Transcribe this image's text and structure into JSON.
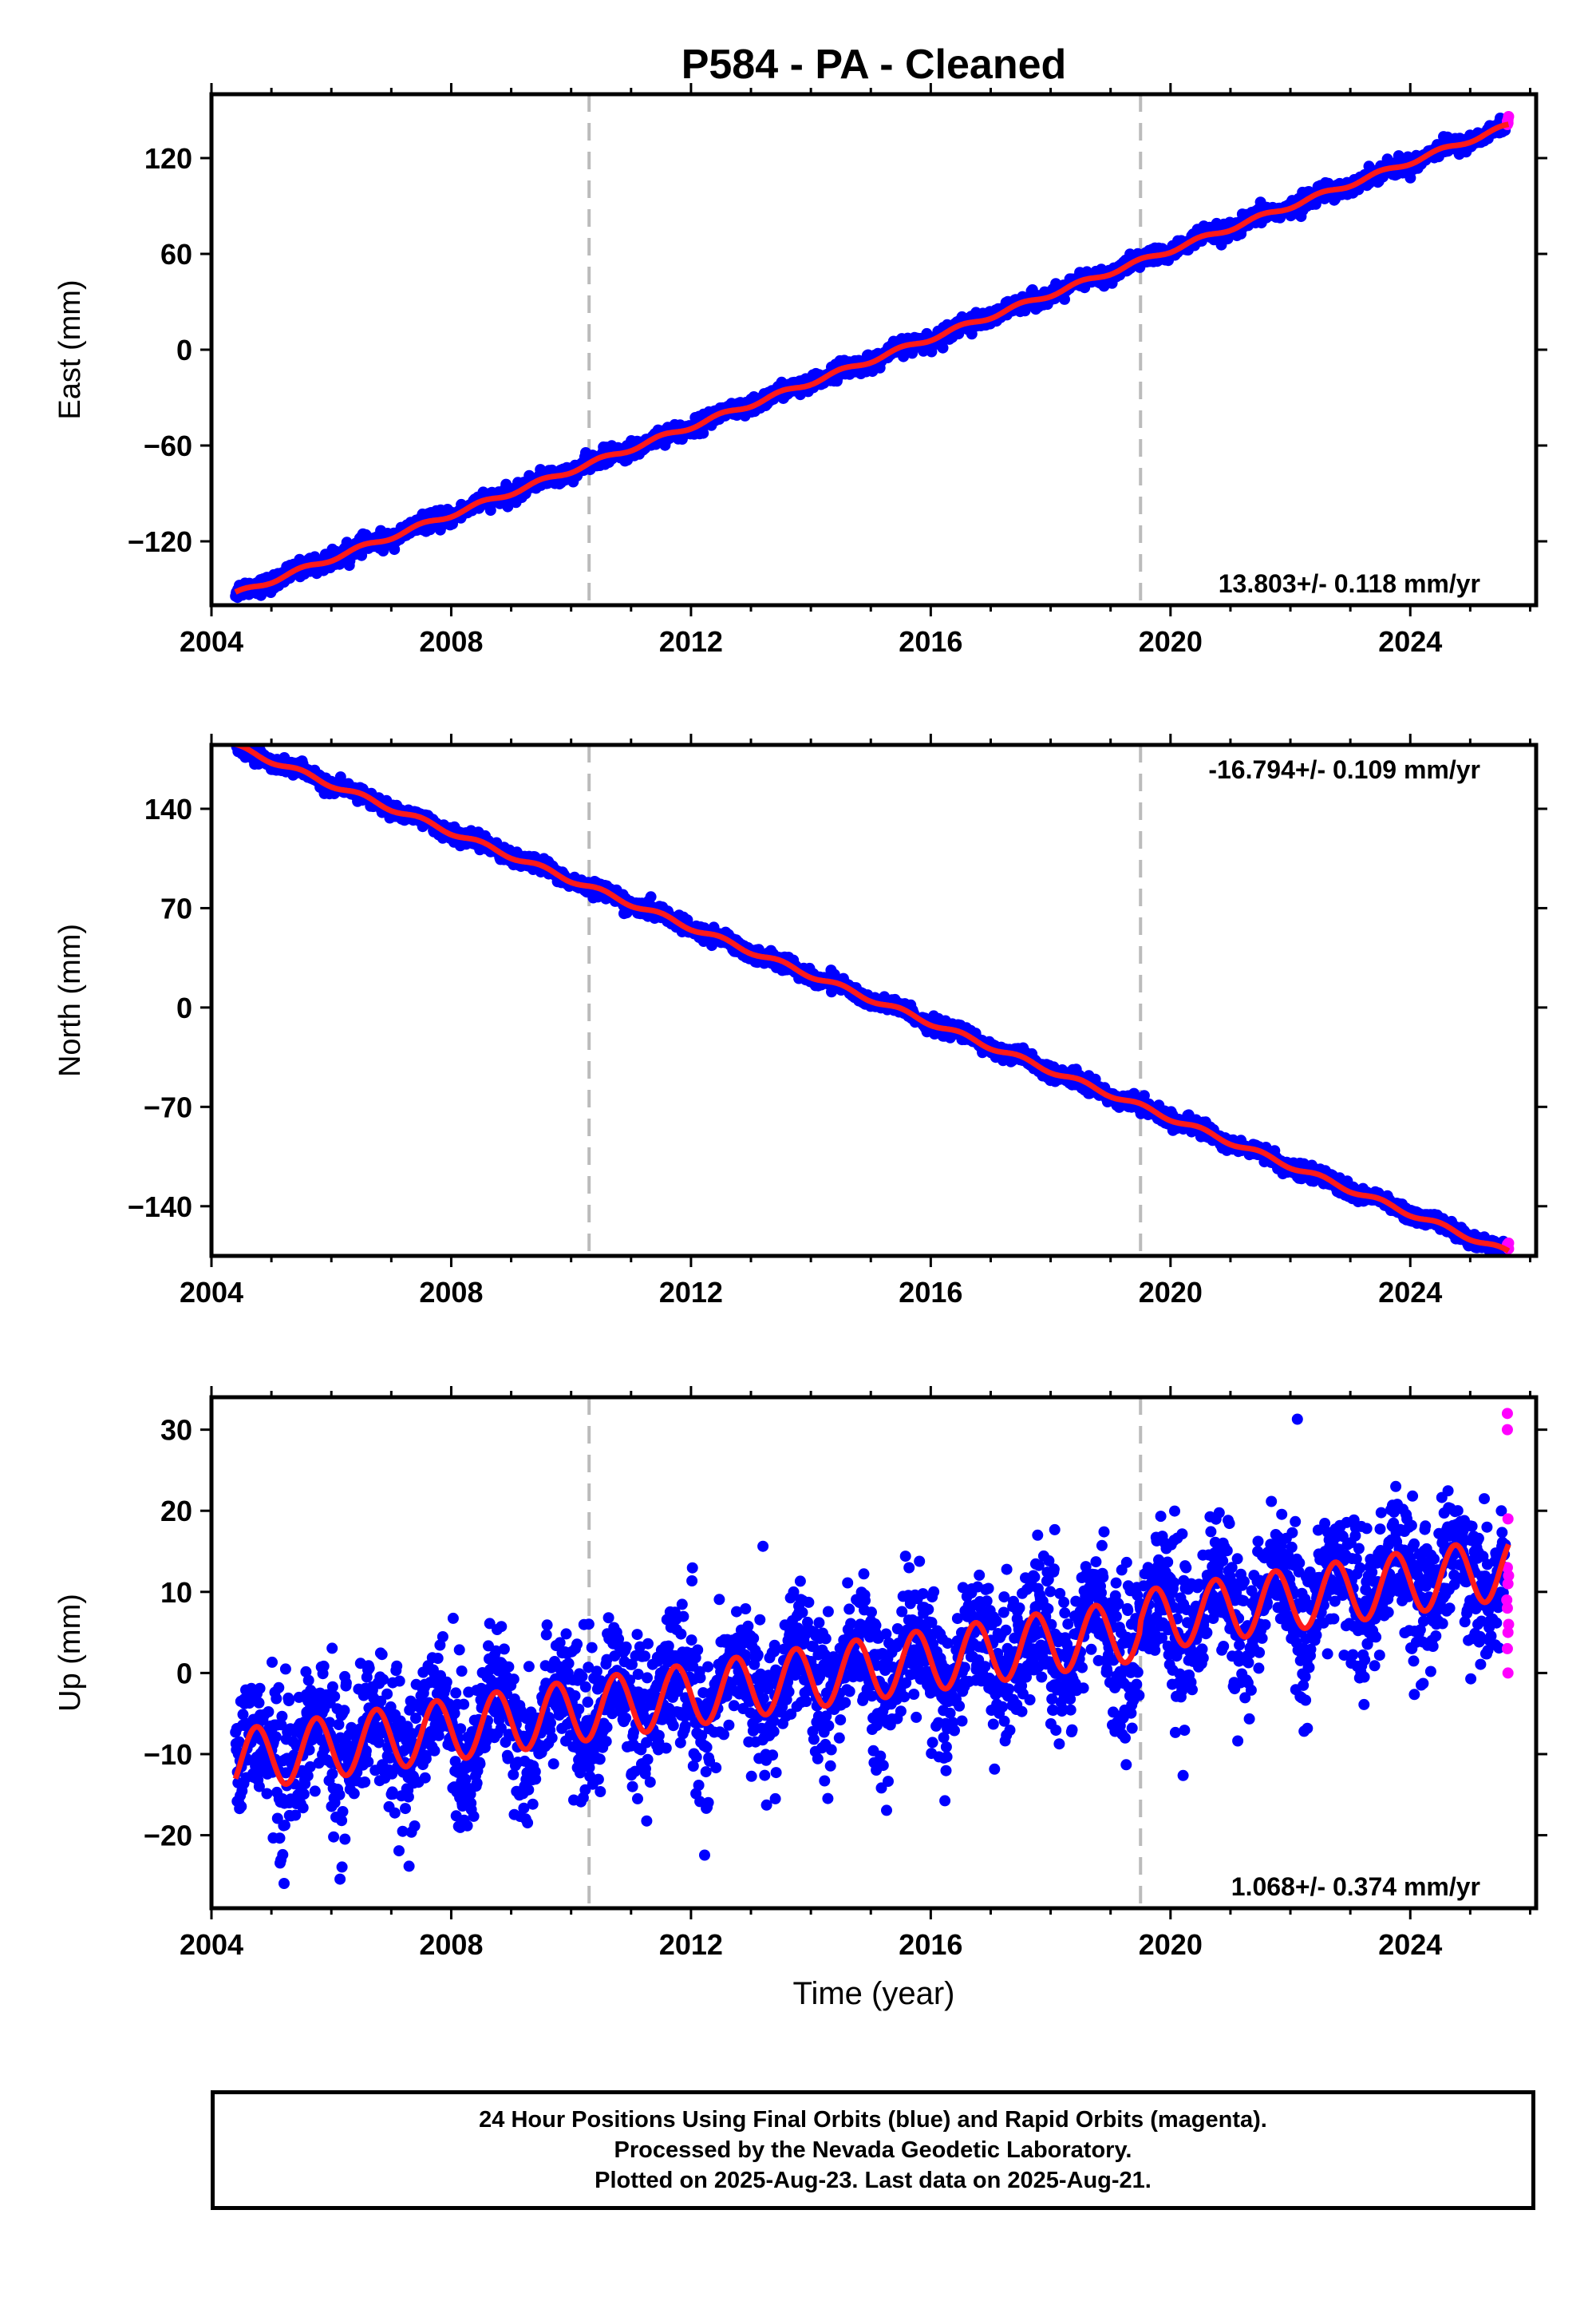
{
  "title": "P584  - PA - Cleaned",
  "colors": {
    "final": "#0000ff",
    "rapid": "#ff00ff",
    "model": "#ff1a1a",
    "epoch_lines": "#bbbbbb"
  },
  "chart_data": [
    {
      "type": "scatter",
      "name": "east",
      "ylabel": "East (mm)",
      "xlabel": "",
      "xlim": [
        2004.0,
        2026.1
      ],
      "ylim": [
        -160,
        160
      ],
      "xticks": [
        2004,
        2008,
        2012,
        2016,
        2020,
        2024
      ],
      "yticks": [
        -120,
        -60,
        0,
        60,
        120
      ],
      "ytick_labels": [
        "−120",
        "−60",
        "0",
        "60",
        "120"
      ],
      "vertical_lines_x": [
        2010.3,
        2019.5
      ],
      "rate_label": "13.803+/- 0.118 mm/yr",
      "rate_label_position": "bottom-right",
      "start_year": 2004.4,
      "end_year": 2025.64,
      "model": {
        "value_at_start": -153,
        "rate_mm_per_yr": 13.803,
        "annual_amplitude": 1.5
      },
      "scatter_spread": 2.5,
      "rapid_points": [
        {
          "x": 2025.62,
          "y": 141
        },
        {
          "x": 2025.63,
          "y": 144
        },
        {
          "x": 2025.64,
          "y": 146
        },
        {
          "x": 2025.62,
          "y": 143
        },
        {
          "x": 2025.63,
          "y": 142
        }
      ]
    },
    {
      "type": "scatter",
      "name": "north",
      "ylabel": "North (mm)",
      "xlabel": "",
      "xlim": [
        2004.0,
        2026.1
      ],
      "ylim": [
        -175,
        185
      ],
      "xticks": [
        2004,
        2008,
        2012,
        2016,
        2020,
        2024
      ],
      "yticks": [
        -140,
        -70,
        0,
        70,
        140
      ],
      "ytick_labels": [
        "−140",
        "−70",
        "0",
        "70",
        "140"
      ],
      "vertical_lines_x": [
        2010.3,
        2019.5
      ],
      "rate_label": "-16.794+/- 0.109 mm/yr",
      "rate_label_position": "top-right",
      "start_year": 2004.4,
      "end_year": 2025.64,
      "model": {
        "value_at_start": 184,
        "rate_mm_per_yr": -16.794,
        "annual_amplitude": 1.8
      },
      "scatter_spread": 2.5,
      "rapid_points": [
        {
          "x": 2025.62,
          "y": -167
        },
        {
          "x": 2025.63,
          "y": -169
        },
        {
          "x": 2025.64,
          "y": -166
        },
        {
          "x": 2025.62,
          "y": -168
        },
        {
          "x": 2025.64,
          "y": -170
        }
      ]
    },
    {
      "type": "scatter",
      "name": "up",
      "ylabel": "Up (mm)",
      "xlabel": "Time (year)",
      "xlim": [
        2004.0,
        2026.1
      ],
      "ylim": [
        -29,
        34
      ],
      "xticks": [
        2004,
        2008,
        2012,
        2016,
        2020,
        2024
      ],
      "yticks": [
        -20,
        -10,
        0,
        10,
        20,
        30
      ],
      "ytick_labels": [
        "−20",
        "−10",
        "0",
        "10",
        "20",
        "30"
      ],
      "vertical_lines_x": [
        2010.3,
        2019.5
      ],
      "rate_label": "1.068+/- 0.374 mm/yr",
      "rate_label_position": "bottom-right",
      "start_year": 2004.4,
      "end_year": 2025.64,
      "model": {
        "value_at_start": -10.8,
        "rate_mm_per_yr": 1.068,
        "annual_amplitude": 3.8,
        "annual_peak_year_fraction": 0.75,
        "offset_at_2019_5": 3.5
      },
      "scatter_spread": 3.6,
      "rapid_points": [
        {
          "x": 2025.62,
          "y": 32
        },
        {
          "x": 2025.62,
          "y": 30
        },
        {
          "x": 2025.63,
          "y": 19
        },
        {
          "x": 2025.62,
          "y": 13
        },
        {
          "x": 2025.64,
          "y": 12
        },
        {
          "x": 2025.63,
          "y": 11
        },
        {
          "x": 2025.61,
          "y": 9
        },
        {
          "x": 2025.62,
          "y": 8
        },
        {
          "x": 2025.64,
          "y": 6
        },
        {
          "x": 2025.63,
          "y": 5
        },
        {
          "x": 2025.62,
          "y": 3
        },
        {
          "x": 2025.63,
          "y": 0
        }
      ]
    }
  ],
  "footer": {
    "line1": "24 Hour Positions Using Final Orbits (blue) and Rapid Orbits (magenta).",
    "line2": "Processed by the Nevada Geodetic Laboratory.",
    "line3": "Plotted on 2025-Aug-23. Last data on 2025-Aug-21."
  }
}
